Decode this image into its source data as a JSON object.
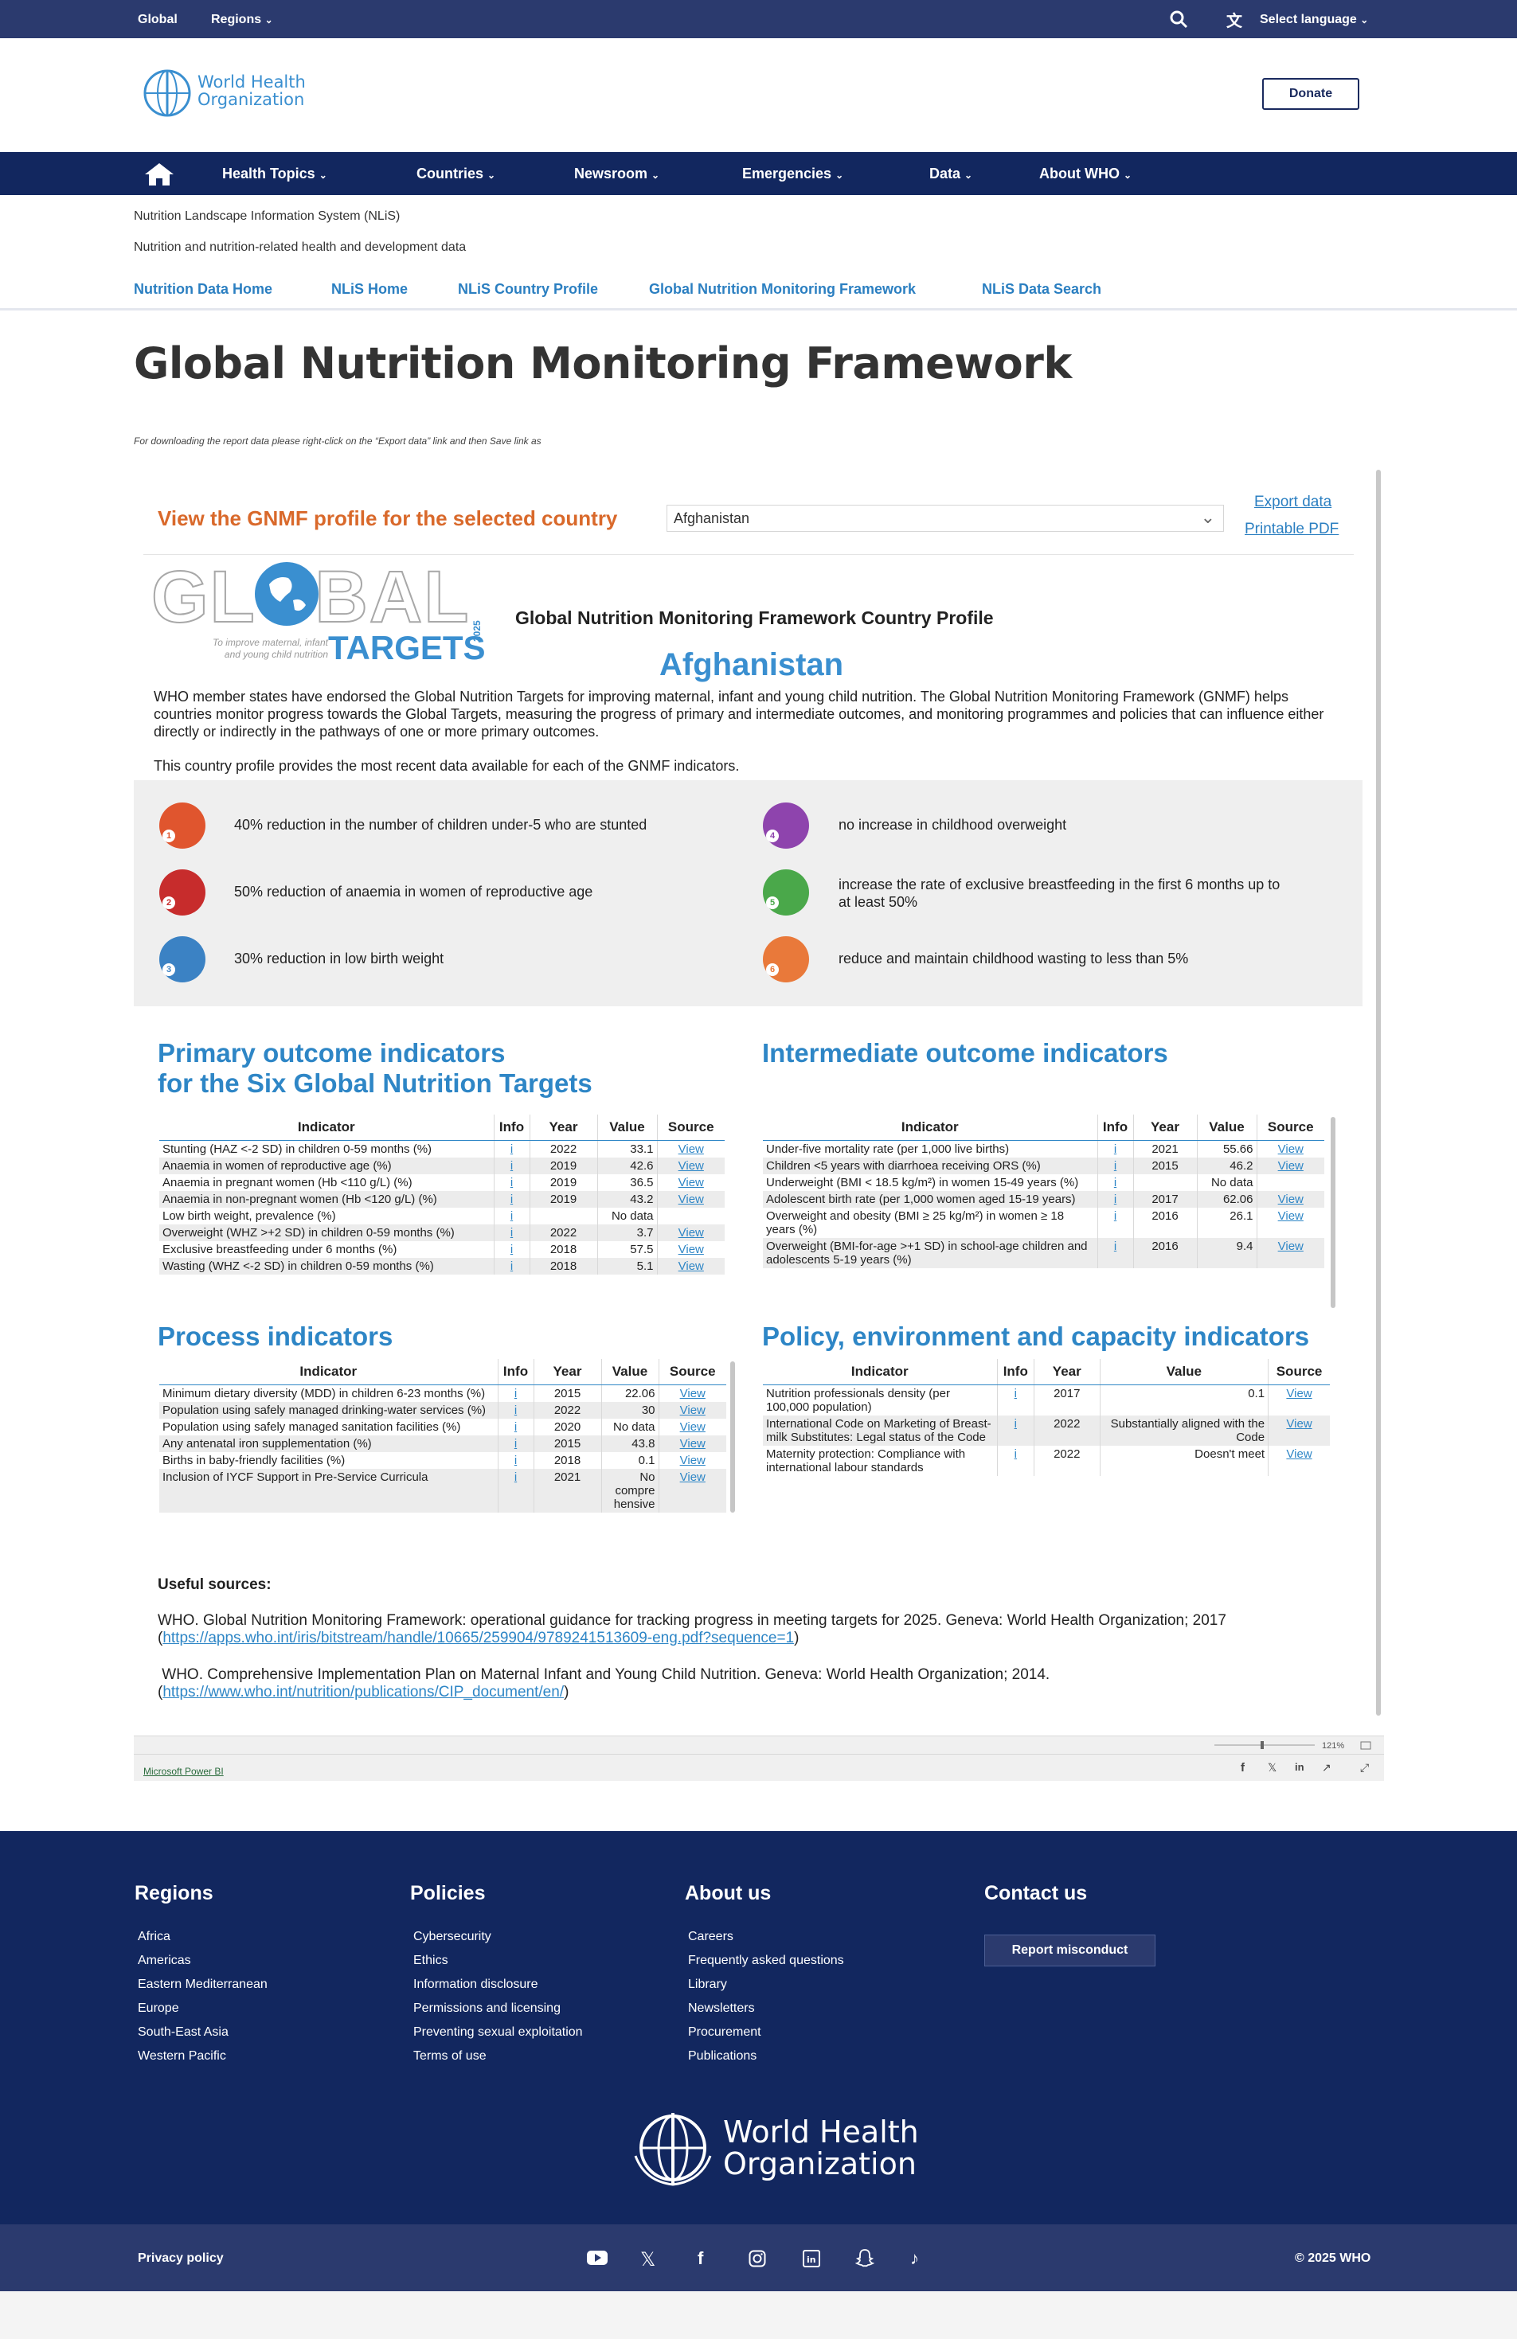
{
  "topbar": {
    "global": "Global",
    "regions": "Regions",
    "language": "Select language"
  },
  "header": {
    "logo_line1": "World Health",
    "logo_line2": "Organization",
    "donate": "Donate"
  },
  "mainnav": [
    "Health Topics",
    "Countries",
    "Newsroom",
    "Emergencies",
    "Data",
    "About WHO"
  ],
  "nlis": {
    "title": "Nutrition Landscape Information System (NLiS)",
    "subtitle": "Nutrition and nutrition-related health and development data",
    "nav": [
      "Nutrition Data Home",
      "NLiS Home",
      "NLiS Country Profile",
      "Global Nutrition Monitoring Framework",
      "NLiS Data Search"
    ]
  },
  "page": {
    "title": "Global Nutrition Monitoring Framework",
    "download_note": "For downloading the report data please right-click on the “Export data” link and then Save link as"
  },
  "report": {
    "profile_label": "View the GNMF profile for the selected country",
    "country_selected": "Afghanistan",
    "export_data": "Export data",
    "printable_pdf": "Printable PDF",
    "logo_word": "GLOBAL",
    "logo_tagline1": "To improve maternal, infant",
    "logo_tagline2": "and young child nutrition",
    "logo_targets": "TARGETS",
    "logo_year": "2025",
    "profile_title": "Global Nutrition Monitoring Framework Country Profile",
    "country": "Afghanistan",
    "intro": "WHO member states have endorsed the Global Nutrition Targets for improving maternal, infant and young child nutrition. The Global Nutrition Monitoring Framework (GNMF) helps countries monitor progress towards the Global Targets, measuring the progress of primary and intermediate outcomes, and monitoring programmes and policies that can influence either directly or indirectly in the pathways of one or more primary outcomes.",
    "intro2": "This country profile provides the most recent data available for each of the GNMF indicators.",
    "targets": [
      {
        "num": "1",
        "text": "40% reduction in the number of children under-5 who are stunted",
        "color": "#e0552e"
      },
      {
        "num": "2",
        "text": "50% reduction of anaemia in women of reproductive age",
        "color": "#c72c2c"
      },
      {
        "num": "3",
        "text": "30% reduction in low birth weight",
        "color": "#3b82c4"
      },
      {
        "num": "4",
        "text": "no increase in childhood overweight",
        "color": "#8e44ad"
      },
      {
        "num": "5",
        "text": "increase the rate of exclusive breastfeeding in the first 6 months up to at least 50%",
        "color": "#4aa84a"
      },
      {
        "num": "6",
        "text": "reduce and maintain childhood wasting to less than 5%",
        "color": "#e9793a"
      }
    ],
    "headers": {
      "indicator": "Indicator",
      "info": "Info",
      "year": "Year",
      "value": "Value",
      "source": "Source"
    },
    "info_char": "i",
    "view": "View",
    "primary": {
      "title1": "Primary outcome indicators",
      "title2": "for the Six Global Nutrition Targets",
      "rows": [
        {
          "ind": "Stunting (HAZ <-2 SD) in children 0-59 months (%)",
          "year": "2022",
          "value": "33.1",
          "src": "View"
        },
        {
          "ind": "Anaemia in women of reproductive age (%)",
          "year": "2019",
          "value": "42.6",
          "src": "View"
        },
        {
          "ind": "Anaemia in pregnant women (Hb <110 g/L) (%)",
          "year": "2019",
          "value": "36.5",
          "src": "View"
        },
        {
          "ind": "Anaemia in non-pregnant women (Hb <120 g/L) (%)",
          "year": "2019",
          "value": "43.2",
          "src": "View"
        },
        {
          "ind": "Low birth weight, prevalence (%)",
          "year": "",
          "value": "No data",
          "src": ""
        },
        {
          "ind": "Overweight (WHZ >+2 SD) in children 0-59 months (%)",
          "year": "2022",
          "value": "3.7",
          "src": "View"
        },
        {
          "ind": "Exclusive breastfeeding under 6 months (%)",
          "year": "2018",
          "value": "57.5",
          "src": "View"
        },
        {
          "ind": "Wasting (WHZ <-2 SD) in children 0-59 months (%)",
          "year": "2018",
          "value": "5.1",
          "src": "View"
        }
      ]
    },
    "intermediate": {
      "title": "Intermediate outcome indicators",
      "rows": [
        {
          "ind": "Under-five mortality rate (per 1,000 live births)",
          "year": "2021",
          "value": "55.66",
          "src": "View"
        },
        {
          "ind": "Children <5 years with diarrhoea receiving ORS (%)",
          "year": "2015",
          "value": "46.2",
          "src": "View"
        },
        {
          "ind": "Underweight (BMI < 18.5 kg/m²) in women 15-49 years (%)",
          "year": "",
          "value": "No data",
          "src": ""
        },
        {
          "ind": "Adolescent birth rate (per 1,000 women aged 15-19 years)",
          "year": "2017",
          "value": "62.06",
          "src": "View"
        },
        {
          "ind": "Overweight and obesity (BMI ≥ 25 kg/m²) in women ≥ 18 years (%)",
          "year": "2016",
          "value": "26.1",
          "src": "View"
        },
        {
          "ind": "Overweight (BMI-for-age >+1 SD) in school-age children and adolescents 5-19 years (%)",
          "year": "2016",
          "value": "9.4",
          "src": "View"
        }
      ]
    },
    "process": {
      "title": "Process indicators",
      "rows": [
        {
          "ind": "Minimum dietary diversity (MDD) in children 6-23 months (%)",
          "year": "2015",
          "value": "22.06",
          "src": "View"
        },
        {
          "ind": "Population using safely managed drinking-water services (%)",
          "year": "2022",
          "value": "30",
          "src": "View"
        },
        {
          "ind": "Population using safely managed sanitation facilities (%)",
          "year": "2020",
          "value": "No data",
          "src": "View"
        },
        {
          "ind": "Any antenatal iron supplementation (%)",
          "year": "2015",
          "value": "43.8",
          "src": "View"
        },
        {
          "ind": "Births in baby-friendly facilities (%)",
          "year": "2018",
          "value": "0.1",
          "src": "View"
        },
        {
          "ind": "Inclusion of IYCF Support in Pre-Service Curricula",
          "year": "2021",
          "value": "No compre hensive",
          "src": "View"
        }
      ]
    },
    "policy": {
      "title": "Policy, environment and capacity indicators",
      "rows": [
        {
          "ind": "Nutrition professionals density (per 100,000 population)",
          "year": "2017",
          "value": "0.1",
          "src": "View"
        },
        {
          "ind": "International Code on Marketing of Breast-milk Substitutes: Legal status of the Code",
          "year": "2022",
          "value": "Substantially aligned with the Code",
          "src": "View"
        },
        {
          "ind": "Maternity protection: Compliance with international labour standards",
          "year": "2022",
          "value": "Doesn't meet",
          "src": "View"
        }
      ]
    },
    "useful_title": "Useful sources:",
    "source1_text": "WHO. Global Nutrition Monitoring Framework: operational guidance for tracking progress in meeting targets for 2025. Geneva: World Health Organization; 2017",
    "source1_url": "https://apps.who.int/iris/bitstream/handle/10665/259904/9789241513609-eng.pdf?sequence=1",
    "source2_text": "WHO. Comprehensive Implementation Plan on Maternal Infant and Young Child Nutrition. Geneva: World Health Organization; 2014.",
    "source2_url": "https://www.who.int/nutrition/publications/CIP_document/en/",
    "powerbi": "Microsoft Power BI",
    "zoom": "121%"
  },
  "footer": {
    "regions_title": "Regions",
    "regions": [
      "Africa",
      "Americas",
      "Eastern Mediterranean",
      "Europe",
      "South-East Asia",
      "Western Pacific"
    ],
    "policies_title": "Policies",
    "policies": [
      "Cybersecurity",
      "Ethics",
      "Information disclosure",
      "Permissions and licensing",
      "Preventing sexual exploitation",
      "Terms of use"
    ],
    "about_title": "About us",
    "about": [
      "Careers",
      "Frequently asked questions",
      "Library",
      "Newsletters",
      "Procurement",
      "Publications"
    ],
    "contact_title": "Contact us",
    "report_btn": "Report misconduct",
    "logo_line1": "World Health",
    "logo_line2": "Organization",
    "privacy": "Privacy policy",
    "copyright": "© 2025  WHO"
  }
}
